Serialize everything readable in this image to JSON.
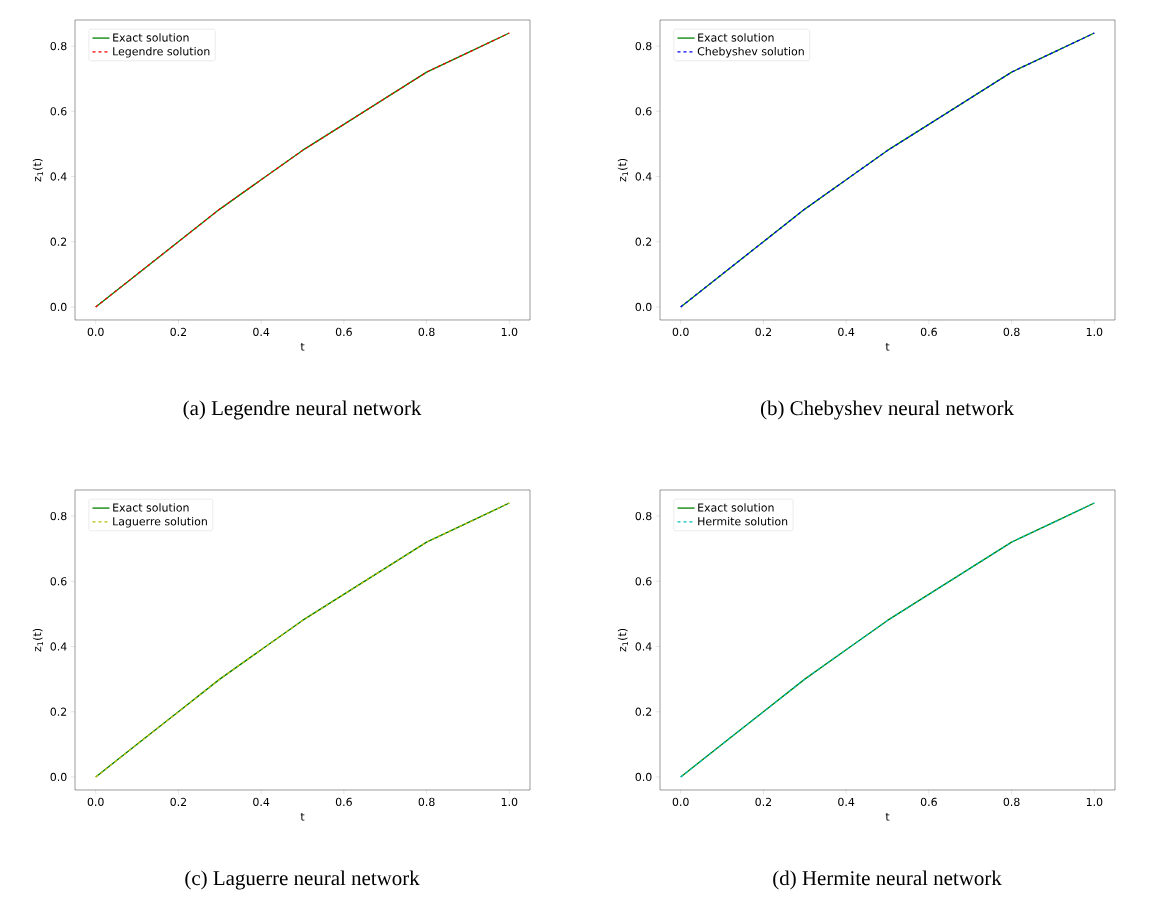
{
  "chart_data": [
    {
      "type": "line",
      "xlabel": "t",
      "ylabel": "z$_{1}$(t)",
      "annotations": [
        "(a) Legendre neural network"
      ],
      "x": [
        0,
        0.1,
        0.2,
        0.3,
        0.4,
        0.5,
        0.6,
        0.7,
        0.8,
        0.9,
        1.0
      ],
      "series": [
        {
          "name": "Exact solution",
          "color": "#008000",
          "line_style": "solid",
          "values": [
            0,
            0.1,
            0.2,
            0.3,
            0.39,
            0.48,
            0.56,
            0.64,
            0.72,
            0.78,
            0.84
          ]
        },
        {
          "name": "Legendre solution",
          "color": "#ff0000",
          "line_style": "dashed",
          "values": [
            0,
            0.1,
            0.2,
            0.3,
            0.39,
            0.48,
            0.56,
            0.64,
            0.72,
            0.78,
            0.84
          ]
        }
      ],
      "xlim": [
        -0.05,
        1.05
      ],
      "ylim": [
        -0.04,
        0.88
      ],
      "xticks": [
        {
          "value": 0,
          "label": "0.0"
        },
        {
          "value": 0.2,
          "label": "0.2"
        },
        {
          "value": 0.4,
          "label": "0.4"
        },
        {
          "value": 0.6,
          "label": "0.6"
        },
        {
          "value": 0.8,
          "label": "0.8"
        },
        {
          "value": 1.0,
          "label": "1.0"
        }
      ],
      "yticks": [
        {
          "value": 0,
          "label": "0.0"
        },
        {
          "value": 0.2,
          "label": "0.2"
        },
        {
          "value": 0.4,
          "label": "0.4"
        },
        {
          "value": 0.6,
          "label": "0.6"
        },
        {
          "value": 0.8,
          "label": "0.8"
        }
      ],
      "legend": "top left"
    },
    {
      "type": "line",
      "xlabel": "t",
      "ylabel": "z$_{1}$(t)",
      "annotations": [
        "(b) Chebyshev neural network"
      ],
      "x": [
        0,
        0.1,
        0.2,
        0.3,
        0.4,
        0.5,
        0.6,
        0.7,
        0.8,
        0.9,
        1.0
      ],
      "series": [
        {
          "name": "Exact solution",
          "color": "#008000",
          "line_style": "solid",
          "values": [
            0,
            0.1,
            0.2,
            0.3,
            0.39,
            0.48,
            0.56,
            0.64,
            0.72,
            0.78,
            0.84
          ]
        },
        {
          "name": "Chebyshev solution",
          "color": "#0000ff",
          "line_style": "dashed",
          "values": [
            0,
            0.1,
            0.2,
            0.3,
            0.39,
            0.48,
            0.56,
            0.64,
            0.72,
            0.78,
            0.84
          ]
        }
      ],
      "xlim": [
        -0.05,
        1.05
      ],
      "ylim": [
        -0.04,
        0.88
      ],
      "xticks": [
        {
          "value": 0,
          "label": "0.0"
        },
        {
          "value": 0.2,
          "label": "0.2"
        },
        {
          "value": 0.4,
          "label": "0.4"
        },
        {
          "value": 0.6,
          "label": "0.6"
        },
        {
          "value": 0.8,
          "label": "0.8"
        },
        {
          "value": 1.0,
          "label": "1.0"
        }
      ],
      "yticks": [
        {
          "value": 0,
          "label": "0.0"
        },
        {
          "value": 0.2,
          "label": "0.2"
        },
        {
          "value": 0.4,
          "label": "0.4"
        },
        {
          "value": 0.6,
          "label": "0.6"
        },
        {
          "value": 0.8,
          "label": "0.8"
        }
      ],
      "legend": "top left"
    },
    {
      "type": "line",
      "xlabel": "t",
      "ylabel": "z$_{1}$(t)",
      "annotations": [
        "(c) Laguerre neural network"
      ],
      "x": [
        0,
        0.1,
        0.2,
        0.3,
        0.4,
        0.5,
        0.6,
        0.7,
        0.8,
        0.9,
        1.0
      ],
      "series": [
        {
          "name": "Exact solution",
          "color": "#008000",
          "line_style": "solid",
          "values": [
            0,
            0.1,
            0.2,
            0.3,
            0.39,
            0.48,
            0.56,
            0.64,
            0.72,
            0.78,
            0.84
          ]
        },
        {
          "name": "Laguerre solution",
          "color": "#bfbf00",
          "line_style": "dashed",
          "values": [
            0,
            0.1,
            0.2,
            0.3,
            0.39,
            0.48,
            0.56,
            0.64,
            0.72,
            0.78,
            0.84
          ]
        }
      ],
      "xlim": [
        -0.05,
        1.05
      ],
      "ylim": [
        -0.04,
        0.88
      ],
      "xticks": [
        {
          "value": 0,
          "label": "0.0"
        },
        {
          "value": 0.2,
          "label": "0.2"
        },
        {
          "value": 0.4,
          "label": "0.4"
        },
        {
          "value": 0.6,
          "label": "0.6"
        },
        {
          "value": 0.8,
          "label": "0.8"
        },
        {
          "value": 1.0,
          "label": "1.0"
        }
      ],
      "yticks": [
        {
          "value": 0,
          "label": "0.0"
        },
        {
          "value": 0.2,
          "label": "0.2"
        },
        {
          "value": 0.4,
          "label": "0.4"
        },
        {
          "value": 0.6,
          "label": "0.6"
        },
        {
          "value": 0.8,
          "label": "0.8"
        }
      ],
      "legend": "top left"
    },
    {
      "type": "line",
      "xlabel": "t",
      "ylabel": "z$_{1}$(t)",
      "annotations": [
        "(d) Hermite neural network"
      ],
      "x": [
        0,
        0.1,
        0.2,
        0.3,
        0.4,
        0.5,
        0.6,
        0.7,
        0.8,
        0.9,
        1.0
      ],
      "series": [
        {
          "name": "Exact solution",
          "color": "#008000",
          "line_style": "solid",
          "values": [
            0,
            0.1,
            0.2,
            0.3,
            0.39,
            0.48,
            0.56,
            0.64,
            0.72,
            0.78,
            0.84
          ]
        },
        {
          "name": "Hermite solution",
          "color": "#00bfbf",
          "line_style": "dashed",
          "values": [
            0,
            0.1,
            0.2,
            0.3,
            0.39,
            0.48,
            0.56,
            0.64,
            0.72,
            0.78,
            0.84
          ]
        }
      ],
      "xlim": [
        -0.05,
        1.05
      ],
      "ylim": [
        -0.04,
        0.88
      ],
      "xticks": [
        {
          "value": 0,
          "label": "0.0"
        },
        {
          "value": 0.2,
          "label": "0.2"
        },
        {
          "value": 0.4,
          "label": "0.4"
        },
        {
          "value": 0.6,
          "label": "0.6"
        },
        {
          "value": 0.8,
          "label": "0.8"
        },
        {
          "value": 1.0,
          "label": "1.0"
        }
      ],
      "yticks": [
        {
          "value": 0,
          "label": "0.0"
        },
        {
          "value": 0.2,
          "label": "0.2"
        },
        {
          "value": 0.4,
          "label": "0.4"
        },
        {
          "value": 0.6,
          "label": "0.6"
        },
        {
          "value": 0.8,
          "label": "0.8"
        }
      ],
      "legend": "top left"
    }
  ]
}
